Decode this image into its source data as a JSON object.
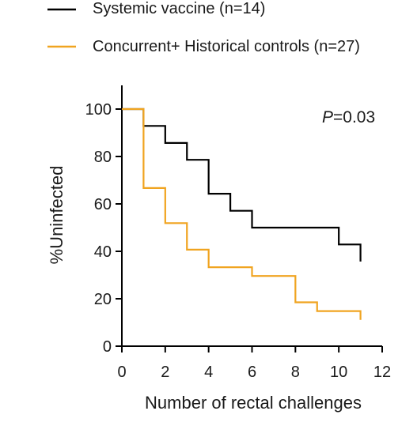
{
  "chart_data": {
    "type": "line",
    "step": true,
    "xlabel": "Number of rectal challenges",
    "ylabel": "%Uninfected",
    "xlim": [
      0,
      12
    ],
    "ylim": [
      0,
      100
    ],
    "xticks": [
      "0",
      "2",
      "4",
      "6",
      "8",
      "10",
      "12"
    ],
    "yticks": [
      "0",
      "20",
      "40",
      "60",
      "80",
      "100"
    ],
    "grid": false,
    "legend_position": "top-left",
    "annotation": {
      "prefix": "P",
      "text": "=0.03"
    },
    "series": [
      {
        "name": "Systemic vaccine (n=14)",
        "color": "#000000",
        "x": [
          0,
          1,
          2,
          3,
          4,
          5,
          6,
          10,
          11
        ],
        "y": [
          100,
          92.9,
          85.7,
          78.6,
          64.3,
          57.1,
          50,
          42.9,
          35.7
        ]
      },
      {
        "name": "Concurrent+ Historical controls (n=27)",
        "color": "#f0a420",
        "x": [
          0,
          1,
          2,
          3,
          4,
          6,
          8,
          9,
          11
        ],
        "y": [
          100,
          66.7,
          51.9,
          40.7,
          33.3,
          29.6,
          18.5,
          14.8,
          11.1
        ]
      }
    ]
  }
}
